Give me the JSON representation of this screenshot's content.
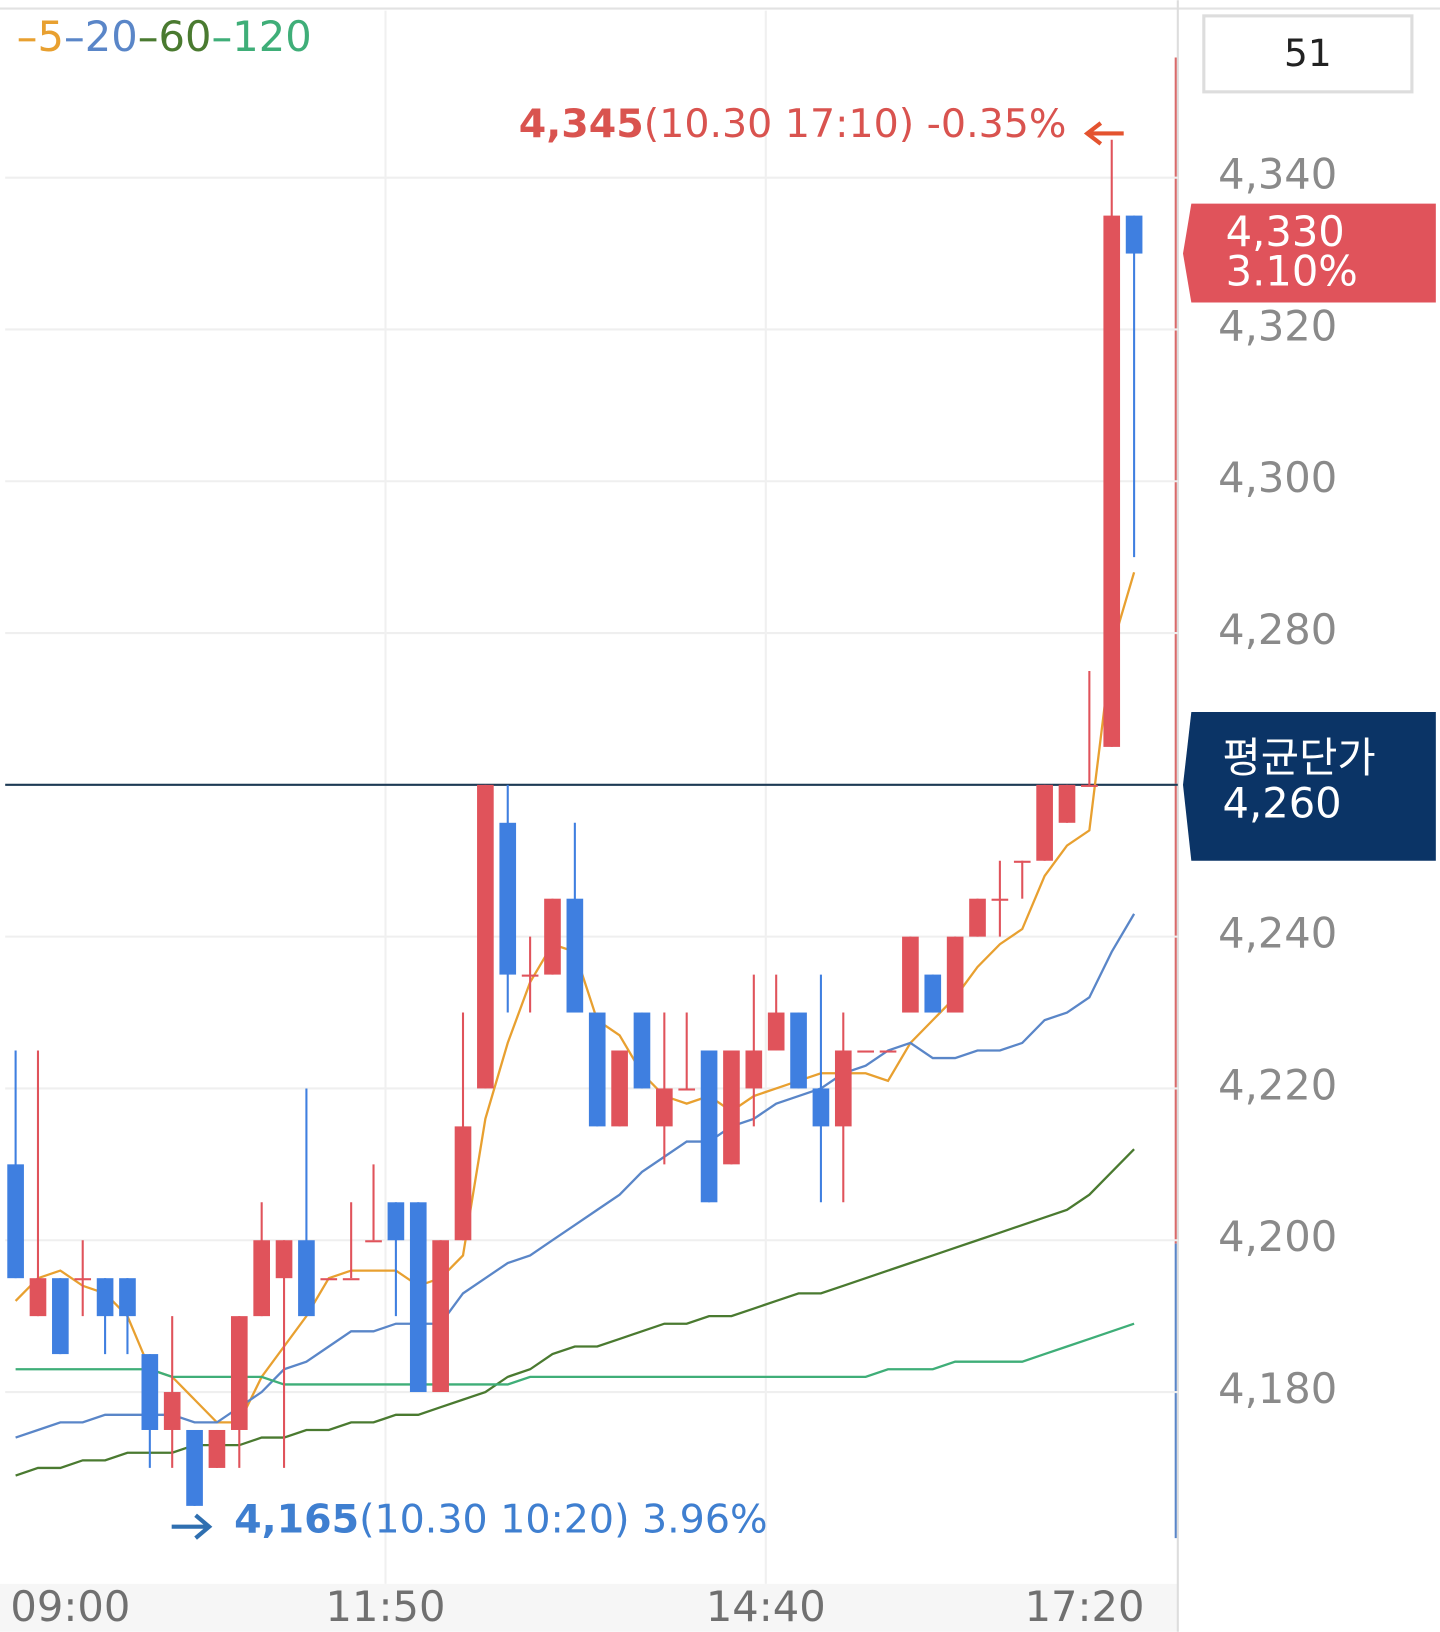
{
  "chart_data": {
    "type": "candlestick",
    "badge": "51",
    "categories": [
      "09:00",
      null,
      null,
      null,
      null,
      null,
      null,
      null,
      null,
      null,
      null,
      null,
      null,
      null,
      null,
      null,
      null,
      "11:50",
      null,
      null,
      null,
      null,
      null,
      null,
      null,
      null,
      null,
      null,
      null,
      null,
      null,
      null,
      null,
      null,
      "14:40",
      null,
      null,
      null,
      null,
      null,
      null,
      null,
      null,
      null,
      null,
      null,
      null,
      null,
      null,
      null,
      "17:20"
    ],
    "open": [
      4210,
      4190,
      4195,
      4195,
      4195,
      4195,
      4185,
      4175,
      4175,
      4170,
      4175,
      4190,
      4195,
      4200,
      4195,
      4195,
      4200,
      4205,
      4205,
      4180,
      4200,
      4220,
      4255,
      4235,
      4235,
      4245,
      4230,
      4215,
      4230,
      4215,
      4220,
      4225,
      4210,
      4220,
      4225,
      4230,
      4220,
      4215,
      4225,
      4225,
      4230,
      4235,
      4230,
      4240,
      4245,
      4250,
      4250,
      4255,
      4260,
      4265,
      4335
    ],
    "high": [
      4225,
      4225,
      4195,
      4200,
      4195,
      4195,
      4185,
      4190,
      4175,
      4175,
      4190,
      4205,
      4200,
      4220,
      4195,
      4205,
      4210,
      4205,
      4205,
      4200,
      4230,
      4260,
      4260,
      4240,
      4245,
      4255,
      4230,
      4225,
      4230,
      4230,
      4230,
      4225,
      4225,
      4235,
      4235,
      4230,
      4235,
      4230,
      4225,
      4225,
      4240,
      4235,
      4240,
      4245,
      4250,
      4250,
      4260,
      4260,
      4275,
      4345,
      4335
    ],
    "low": [
      4195,
      4190,
      4185,
      4190,
      4185,
      4185,
      4170,
      4170,
      4165,
      4170,
      4170,
      4190,
      4170,
      4190,
      4195,
      4195,
      4200,
      4190,
      4180,
      4180,
      4200,
      4220,
      4230,
      4230,
      4235,
      4230,
      4215,
      4215,
      4220,
      4210,
      4220,
      4205,
      4210,
      4215,
      4225,
      4220,
      4205,
      4205,
      4225,
      4225,
      4230,
      4230,
      4230,
      4240,
      4240,
      4245,
      4250,
      4255,
      4260,
      4265,
      4290
    ],
    "close": [
      4195,
      4195,
      4185,
      4195,
      4190,
      4190,
      4175,
      4180,
      4165,
      4175,
      4190,
      4200,
      4200,
      4190,
      4195,
      4195,
      4200,
      4200,
      4180,
      4200,
      4215,
      4260,
      4235,
      4235,
      4245,
      4230,
      4215,
      4225,
      4220,
      4220,
      4220,
      4205,
      4225,
      4225,
      4230,
      4220,
      4215,
      4225,
      4225,
      4225,
      4240,
      4230,
      4240,
      4245,
      4245,
      4250,
      4260,
      4260,
      4260,
      4335,
      4330
    ],
    "up_color": "#e0535b",
    "down_color": "#3f7fe0",
    "series": [
      {
        "name": "5",
        "color": "#e8a030",
        "values": [
          4192,
          4195,
          4196,
          4194,
          4193,
          4190,
          4183,
          4182,
          4179,
          4176,
          4176,
          4182,
          4186,
          4190,
          4195,
          4196,
          4196,
          4196,
          4194,
          4195,
          4198,
          4216,
          4226,
          4234,
          4239,
          4238,
          4229,
          4227,
          4222,
          4219,
          4218,
          4219,
          4217,
          4219,
          4220,
          4221,
          4222,
          4222,
          4222,
          4221,
          4226,
          4229,
          4232,
          4236,
          4239,
          4241,
          4248,
          4252,
          4254,
          4278,
          4288
        ]
      },
      {
        "name": "20",
        "color": "#5a86c8",
        "values": [
          4174,
          4175,
          4176,
          4176,
          4177,
          4177,
          4177,
          4177,
          4176,
          4176,
          4178,
          4180,
          4183,
          4184,
          4186,
          4188,
          4188,
          4189,
          4189,
          4189,
          4193,
          4195,
          4197,
          4198,
          4200,
          4202,
          4204,
          4206,
          4209,
          4211,
          4213,
          4213,
          4215,
          4216,
          4218,
          4219,
          4220,
          4222,
          4223,
          4225,
          4226,
          4224,
          4224,
          4225,
          4225,
          4226,
          4229,
          4230,
          4232,
          4238,
          4243
        ]
      },
      {
        "name": "60",
        "color": "#4a7a30",
        "values": [
          4169,
          4170,
          4170,
          4171,
          4171,
          4172,
          4172,
          4172,
          4173,
          4173,
          4173,
          4174,
          4174,
          4175,
          4175,
          4176,
          4176,
          4177,
          4177,
          4178,
          4179,
          4180,
          4182,
          4183,
          4185,
          4186,
          4186,
          4187,
          4188,
          4189,
          4189,
          4190,
          4190,
          4191,
          4192,
          4193,
          4193,
          4194,
          4195,
          4196,
          4197,
          4198,
          4199,
          4200,
          4201,
          4202,
          4203,
          4204,
          4206,
          4209,
          4212
        ]
      },
      {
        "name": "120",
        "color": "#3fae78",
        "values": [
          4183,
          4183,
          4183,
          4183,
          4183,
          4183,
          4183,
          4182,
          4182,
          4182,
          4182,
          4182,
          4181,
          4181,
          4181,
          4181,
          4181,
          4181,
          4181,
          4181,
          4181,
          4181,
          4181,
          4182,
          4182,
          4182,
          4182,
          4182,
          4182,
          4182,
          4182,
          4182,
          4182,
          4182,
          4182,
          4182,
          4182,
          4182,
          4182,
          4183,
          4183,
          4183,
          4184,
          4184,
          4184,
          4184,
          4185,
          4186,
          4187,
          4188,
          4189
        ]
      }
    ],
    "ylim": [
      4155,
      4362
    ],
    "yticks": [
      {
        "value": 4180,
        "label": "4,180"
      },
      {
        "value": 4200,
        "label": "4,200"
      },
      {
        "value": 4220,
        "label": "4,220"
      },
      {
        "value": 4240,
        "label": "4,240"
      },
      {
        "value": 4260,
        "label": "4,260"
      },
      {
        "value": 4280,
        "label": "4,280"
      },
      {
        "value": 4300,
        "label": "4,300"
      },
      {
        "value": 4320,
        "label": "4,320"
      },
      {
        "value": 4340,
        "label": "4,340"
      }
    ],
    "grid": true,
    "max_marker": {
      "value": 4345,
      "label": "4,345",
      "time": "(10.30 17:10)",
      "change": "-0.35%",
      "color": "#d9534f"
    },
    "min_marker": {
      "value": 4165,
      "label": "4,165",
      "time": "(10.30 10:20)",
      "change": "3.96%",
      "color": "#3f7fd0"
    },
    "current_price": {
      "value": 4330,
      "label": "4,330",
      "change": "3.10%",
      "color": "#e0535b"
    },
    "average_price": {
      "title": "평균단가",
      "value": 4260,
      "label": "4,260",
      "color": "#0b3466"
    }
  }
}
